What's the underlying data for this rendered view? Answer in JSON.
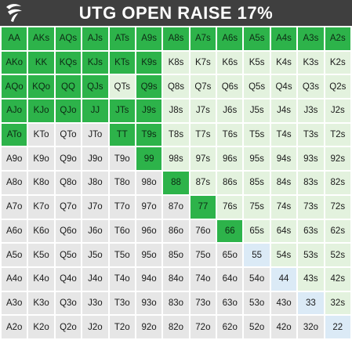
{
  "header": {
    "title": "UTG OPEN RAISE 17%",
    "logo_icon": "club-leaf-logo"
  },
  "colors": {
    "raise": "#2db34a",
    "fold_suited": "#e3f2de",
    "fold_offsuit": "#e6e6e6",
    "fold_pair": "#dbeaf6",
    "header_bg": "#3f3f3f"
  },
  "grid": {
    "ranks": [
      "A",
      "K",
      "Q",
      "J",
      "T",
      "9",
      "8",
      "7",
      "6",
      "5",
      "4",
      "3",
      "2"
    ],
    "raise_hands": [
      "AA",
      "AKs",
      "AQs",
      "AJs",
      "ATs",
      "A9s",
      "A8s",
      "A7s",
      "A6s",
      "A5s",
      "A4s",
      "A3s",
      "A2s",
      "AKo",
      "KK",
      "KQs",
      "KJs",
      "KTs",
      "K9s",
      "AQo",
      "KQo",
      "QQ",
      "QJs",
      "Q9s",
      "AJo",
      "KJo",
      "QJo",
      "JJ",
      "JTs",
      "J9s",
      "ATo",
      "TT",
      "T9s",
      "99",
      "88",
      "77",
      "66"
    ]
  }
}
